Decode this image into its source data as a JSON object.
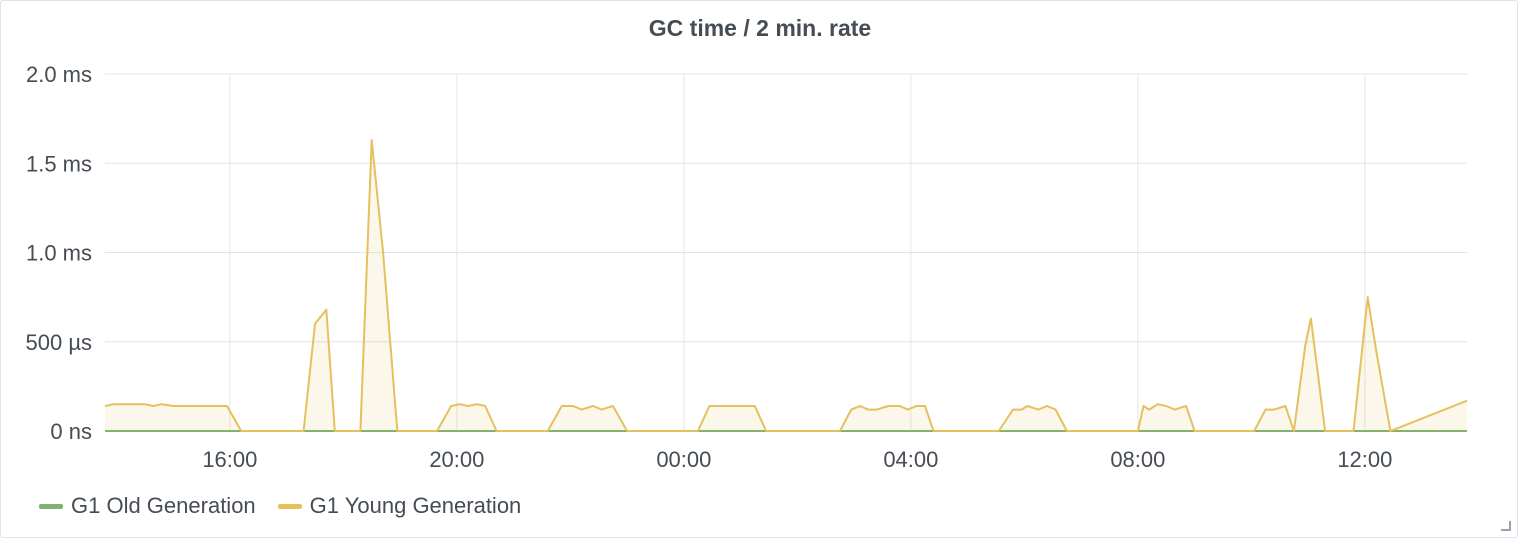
{
  "panel": {
    "title": "GC time / 2 min. rate"
  },
  "colors": {
    "old_gen": "#7eb26d",
    "young_gen": "#e5c05e",
    "young_fill": "rgba(229,192,94,0.12)",
    "grid": "#e4e4e4",
    "axis_text": "#464c54"
  },
  "icons": {
    "resize": "resize-corner-icon"
  },
  "chart_data": {
    "type": "area",
    "title": "GC time / 2 min. rate",
    "xlabel": "",
    "ylabel": "",
    "xlim": [
      13.8,
      37.8
    ],
    "ylim": [
      0,
      2.0
    ],
    "y_unit": "ms",
    "y_ticks": [
      {
        "value": 0,
        "label": "0 ns"
      },
      {
        "value": 0.5,
        "label": "500 µs"
      },
      {
        "value": 1.0,
        "label": "1.0 ms"
      },
      {
        "value": 1.5,
        "label": "1.5 ms"
      },
      {
        "value": 2.0,
        "label": "2.0 ms"
      }
    ],
    "x_ticks": [
      {
        "value": 16,
        "label": "16:00"
      },
      {
        "value": 20,
        "label": "20:00"
      },
      {
        "value": 24,
        "label": "00:00"
      },
      {
        "value": 28,
        "label": "04:00"
      },
      {
        "value": 32,
        "label": "08:00"
      },
      {
        "value": 36,
        "label": "12:00"
      }
    ],
    "grid": true,
    "legend_position": "bottom-left",
    "series": [
      {
        "name": "G1 Old Generation",
        "color": "#7eb26d",
        "x": [
          13.8,
          37.8
        ],
        "values": [
          0,
          0
        ]
      },
      {
        "name": "G1 Young Generation",
        "color": "#e5c05e",
        "fill": true,
        "x": [
          13.8,
          13.95,
          14.1,
          14.3,
          14.5,
          14.65,
          14.8,
          15.0,
          15.5,
          15.95,
          16.2,
          17.3,
          17.5,
          17.7,
          17.85,
          18.3,
          18.5,
          18.7,
          18.95,
          19.65,
          19.9,
          20.05,
          20.2,
          20.35,
          20.5,
          20.7,
          21.6,
          21.85,
          22.05,
          22.2,
          22.4,
          22.55,
          22.75,
          23.0,
          24.25,
          24.45,
          24.7,
          25.0,
          25.25,
          25.45,
          26.75,
          26.95,
          27.1,
          27.25,
          27.4,
          27.6,
          27.8,
          27.95,
          28.1,
          28.25,
          28.4,
          29.55,
          29.8,
          29.95,
          30.05,
          30.25,
          30.4,
          30.55,
          30.75,
          30.95,
          32.0,
          32.1,
          32.2,
          32.35,
          32.5,
          32.65,
          32.85,
          33.0,
          34.05,
          34.25,
          34.4,
          34.6,
          34.75,
          34.95,
          35.05,
          35.3,
          35.6,
          35.8,
          36.05,
          36.2,
          36.45,
          37.8
        ],
        "values": [
          0.14,
          0.15,
          0.15,
          0.15,
          0.15,
          0.14,
          0.15,
          0.14,
          0.14,
          0.14,
          0,
          0,
          0.6,
          0.68,
          0,
          0,
          1.63,
          1.0,
          0,
          0,
          0.14,
          0.15,
          0.14,
          0.15,
          0.14,
          0,
          0,
          0.14,
          0.14,
          0.12,
          0.14,
          0.12,
          0.14,
          0,
          0,
          0.14,
          0.14,
          0.14,
          0.14,
          0,
          0,
          0.12,
          0.14,
          0.12,
          0.12,
          0.14,
          0.14,
          0.12,
          0.14,
          0.14,
          0,
          0,
          0.12,
          0.12,
          0.14,
          0.12,
          0.14,
          0.12,
          0,
          0,
          0,
          0.14,
          0.12,
          0.15,
          0.14,
          0.12,
          0.14,
          0,
          0,
          0.12,
          0.12,
          0.14,
          0,
          0.48,
          0.63,
          0,
          0,
          0,
          0.75,
          0.45,
          0,
          0.17
        ]
      }
    ]
  }
}
